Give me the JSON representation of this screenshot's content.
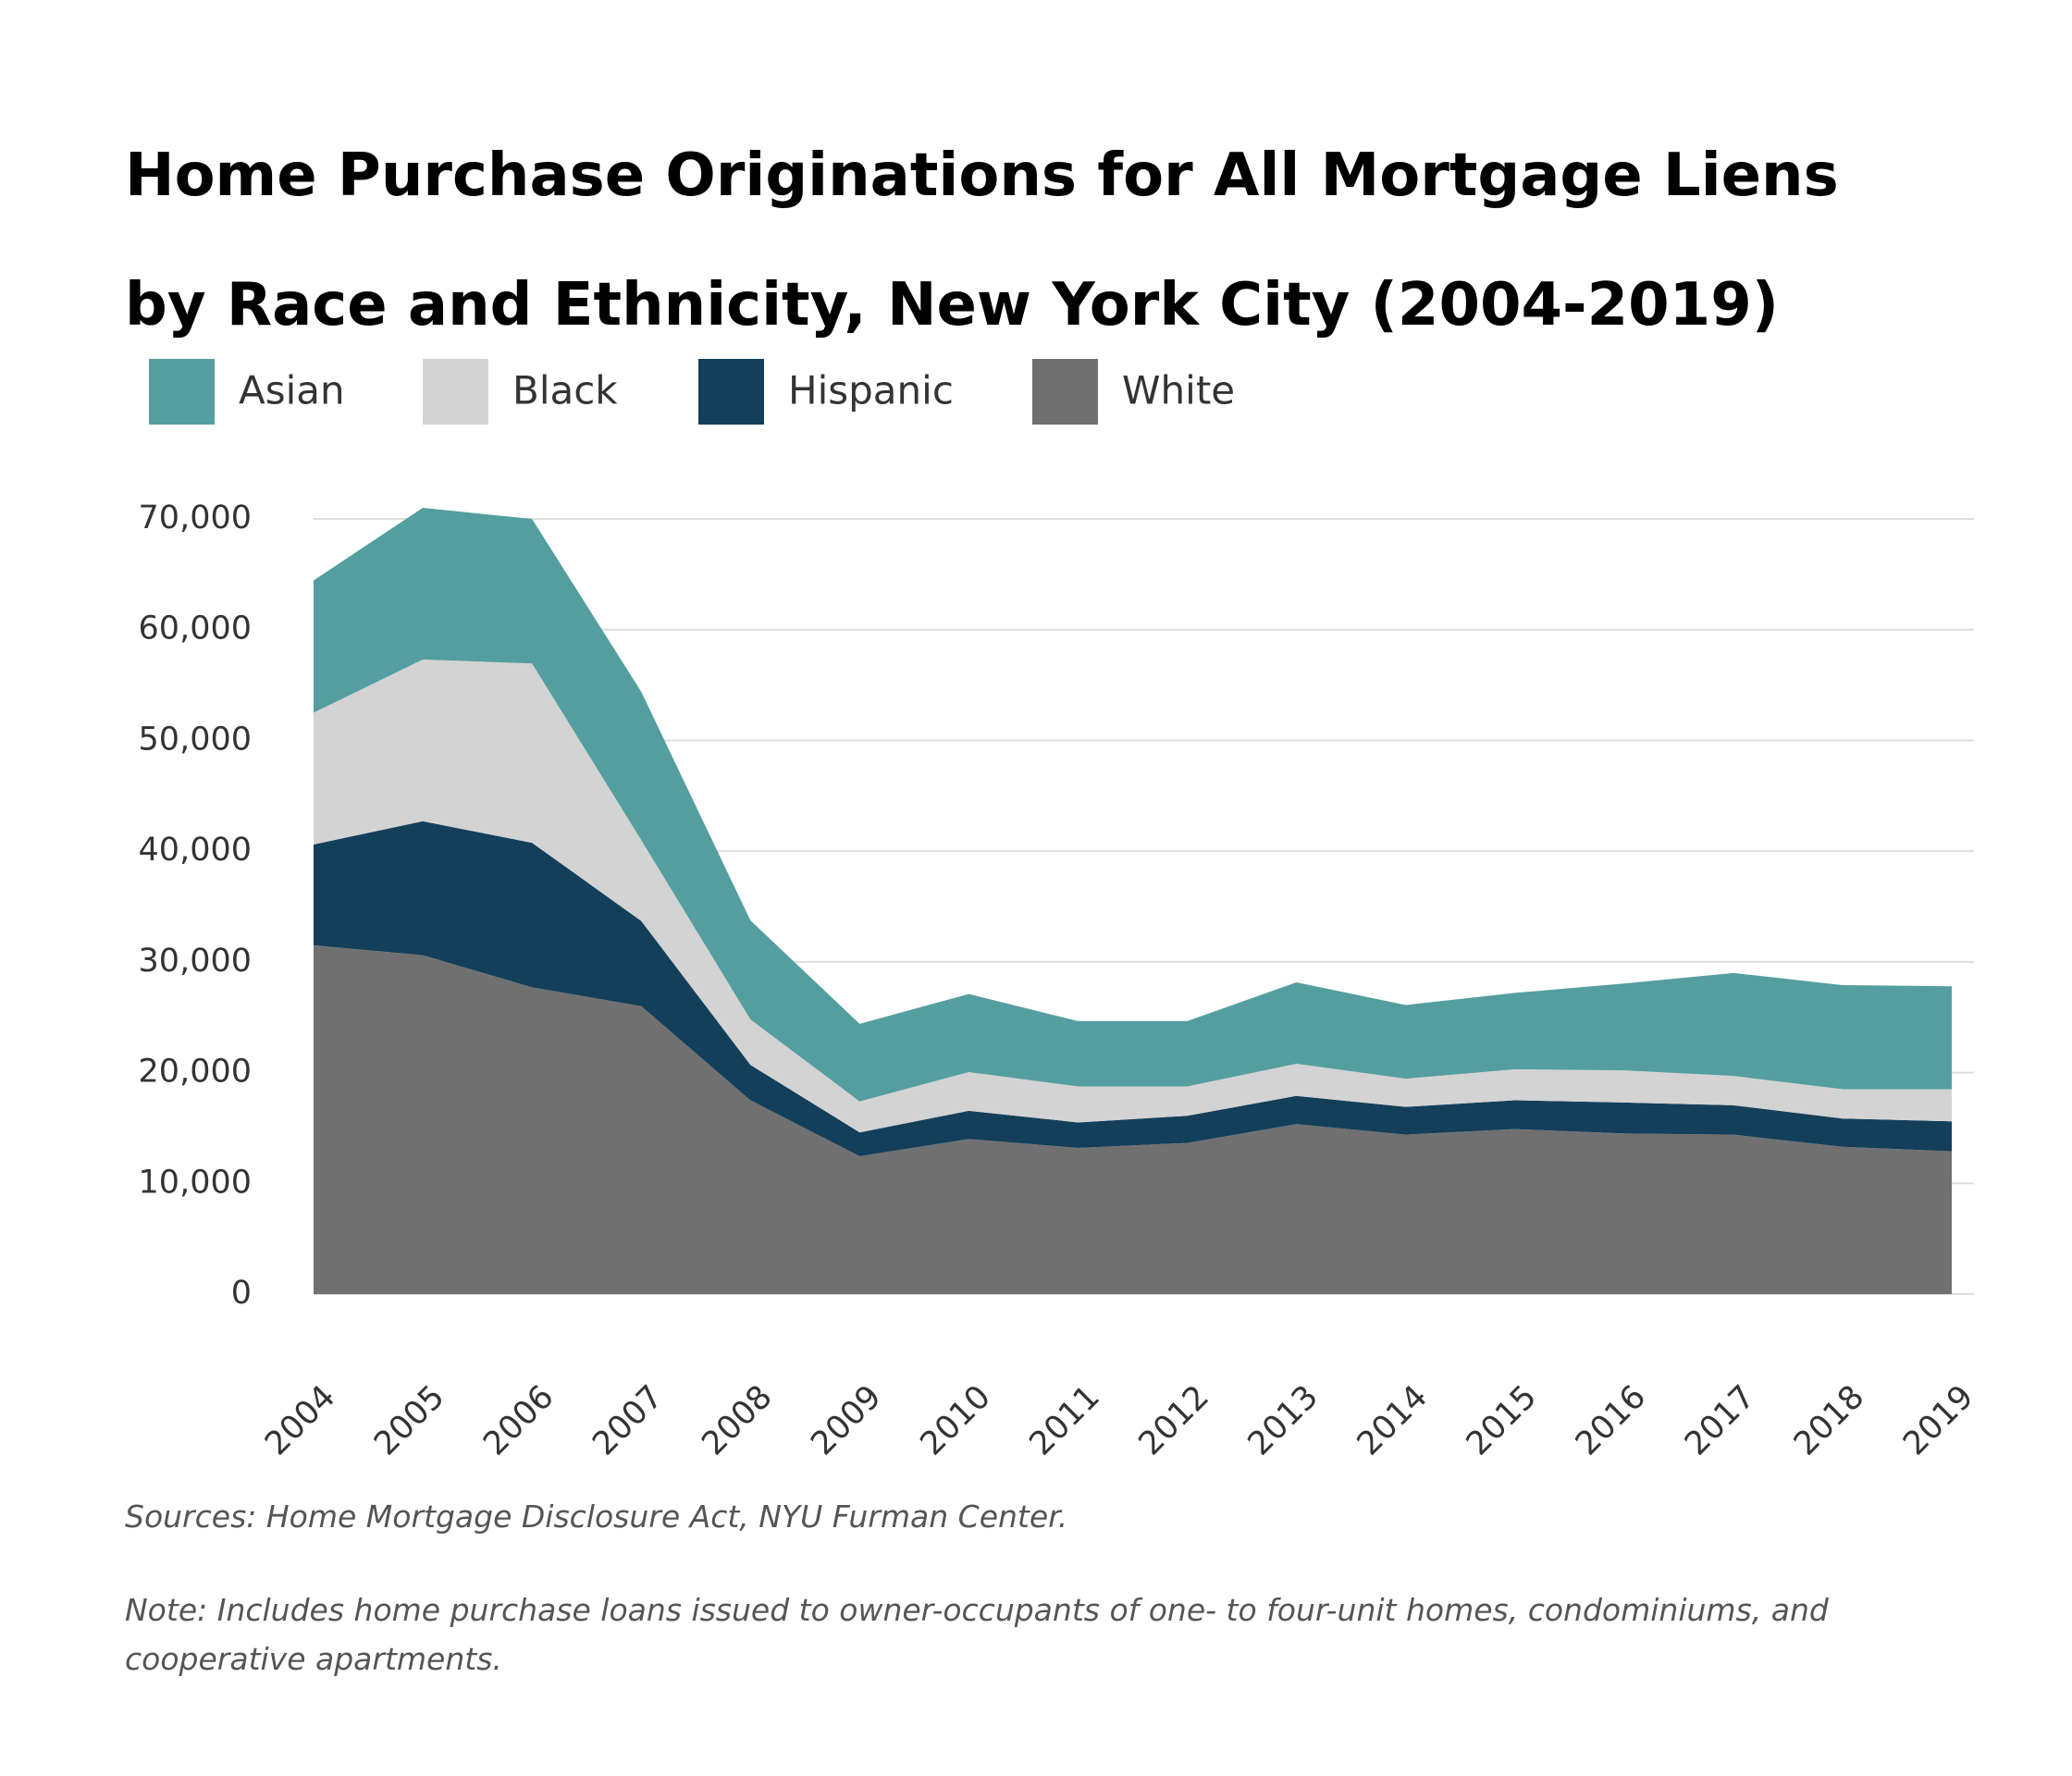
{
  "chart_data": {
    "type": "stacked_area",
    "title": "Home Purchase Originations for All Mortgage Liens by Race and Ethnicity, New York City (2004-2019)",
    "categories": [
      "2004",
      "2005",
      "2006",
      "2007",
      "2008",
      "2009",
      "2010",
      "2011",
      "2012",
      "2013",
      "2014",
      "2015",
      "2016",
      "2017",
      "2018",
      "2019"
    ],
    "series": [
      {
        "name": "Asian",
        "color": "#559e9f",
        "values": [
          11950,
          13700,
          13050,
          13400,
          8950,
          7000,
          7050,
          5900,
          5900,
          7350,
          6650,
          6900,
          7850,
          9300,
          9400,
          9300
        ]
      },
      {
        "name": "Black",
        "color": "#d3d3d3",
        "values": [
          11900,
          14600,
          16200,
          7300,
          4100,
          2800,
          3500,
          3250,
          2650,
          2900,
          2550,
          2800,
          2900,
          2650,
          2650,
          2900
        ]
      },
      {
        "name": "Hispanic",
        "color": "#143f5b",
        "values": [
          9100,
          12100,
          13050,
          7700,
          3200,
          2150,
          2550,
          2300,
          2450,
          2550,
          2500,
          2600,
          2800,
          2650,
          2550,
          2700
        ]
      },
      {
        "name": "White",
        "color": "#707070",
        "values": [
          31500,
          30600,
          27700,
          26000,
          17500,
          12450,
          14000,
          13200,
          13650,
          15350,
          14400,
          14900,
          14500,
          14400,
          13300,
          12900
        ]
      }
    ],
    "ylim": [
      0,
      70000
    ],
    "yticks": [
      0,
      {
        "value": 10000,
        "label": "10,000"
      },
      {
        "value": 20000,
        "label": "20,000"
      },
      {
        "value": 30000,
        "label": "30,000"
      },
      {
        "value": 40000,
        "label": "40,000"
      },
      {
        "value": 50000,
        "label": "50,000"
      },
      {
        "value": 60000,
        "label": "60,000"
      },
      {
        "value": 70000,
        "label": "70,000"
      }
    ],
    "grid": true,
    "source": "Sources: Home Mortgage Disclosure Act, NYU Furman Center.",
    "note": "Note: Includes home purchase loans issued to owner-occupants of one- to four-unit homes, condominiums, and cooperative apartments."
  }
}
